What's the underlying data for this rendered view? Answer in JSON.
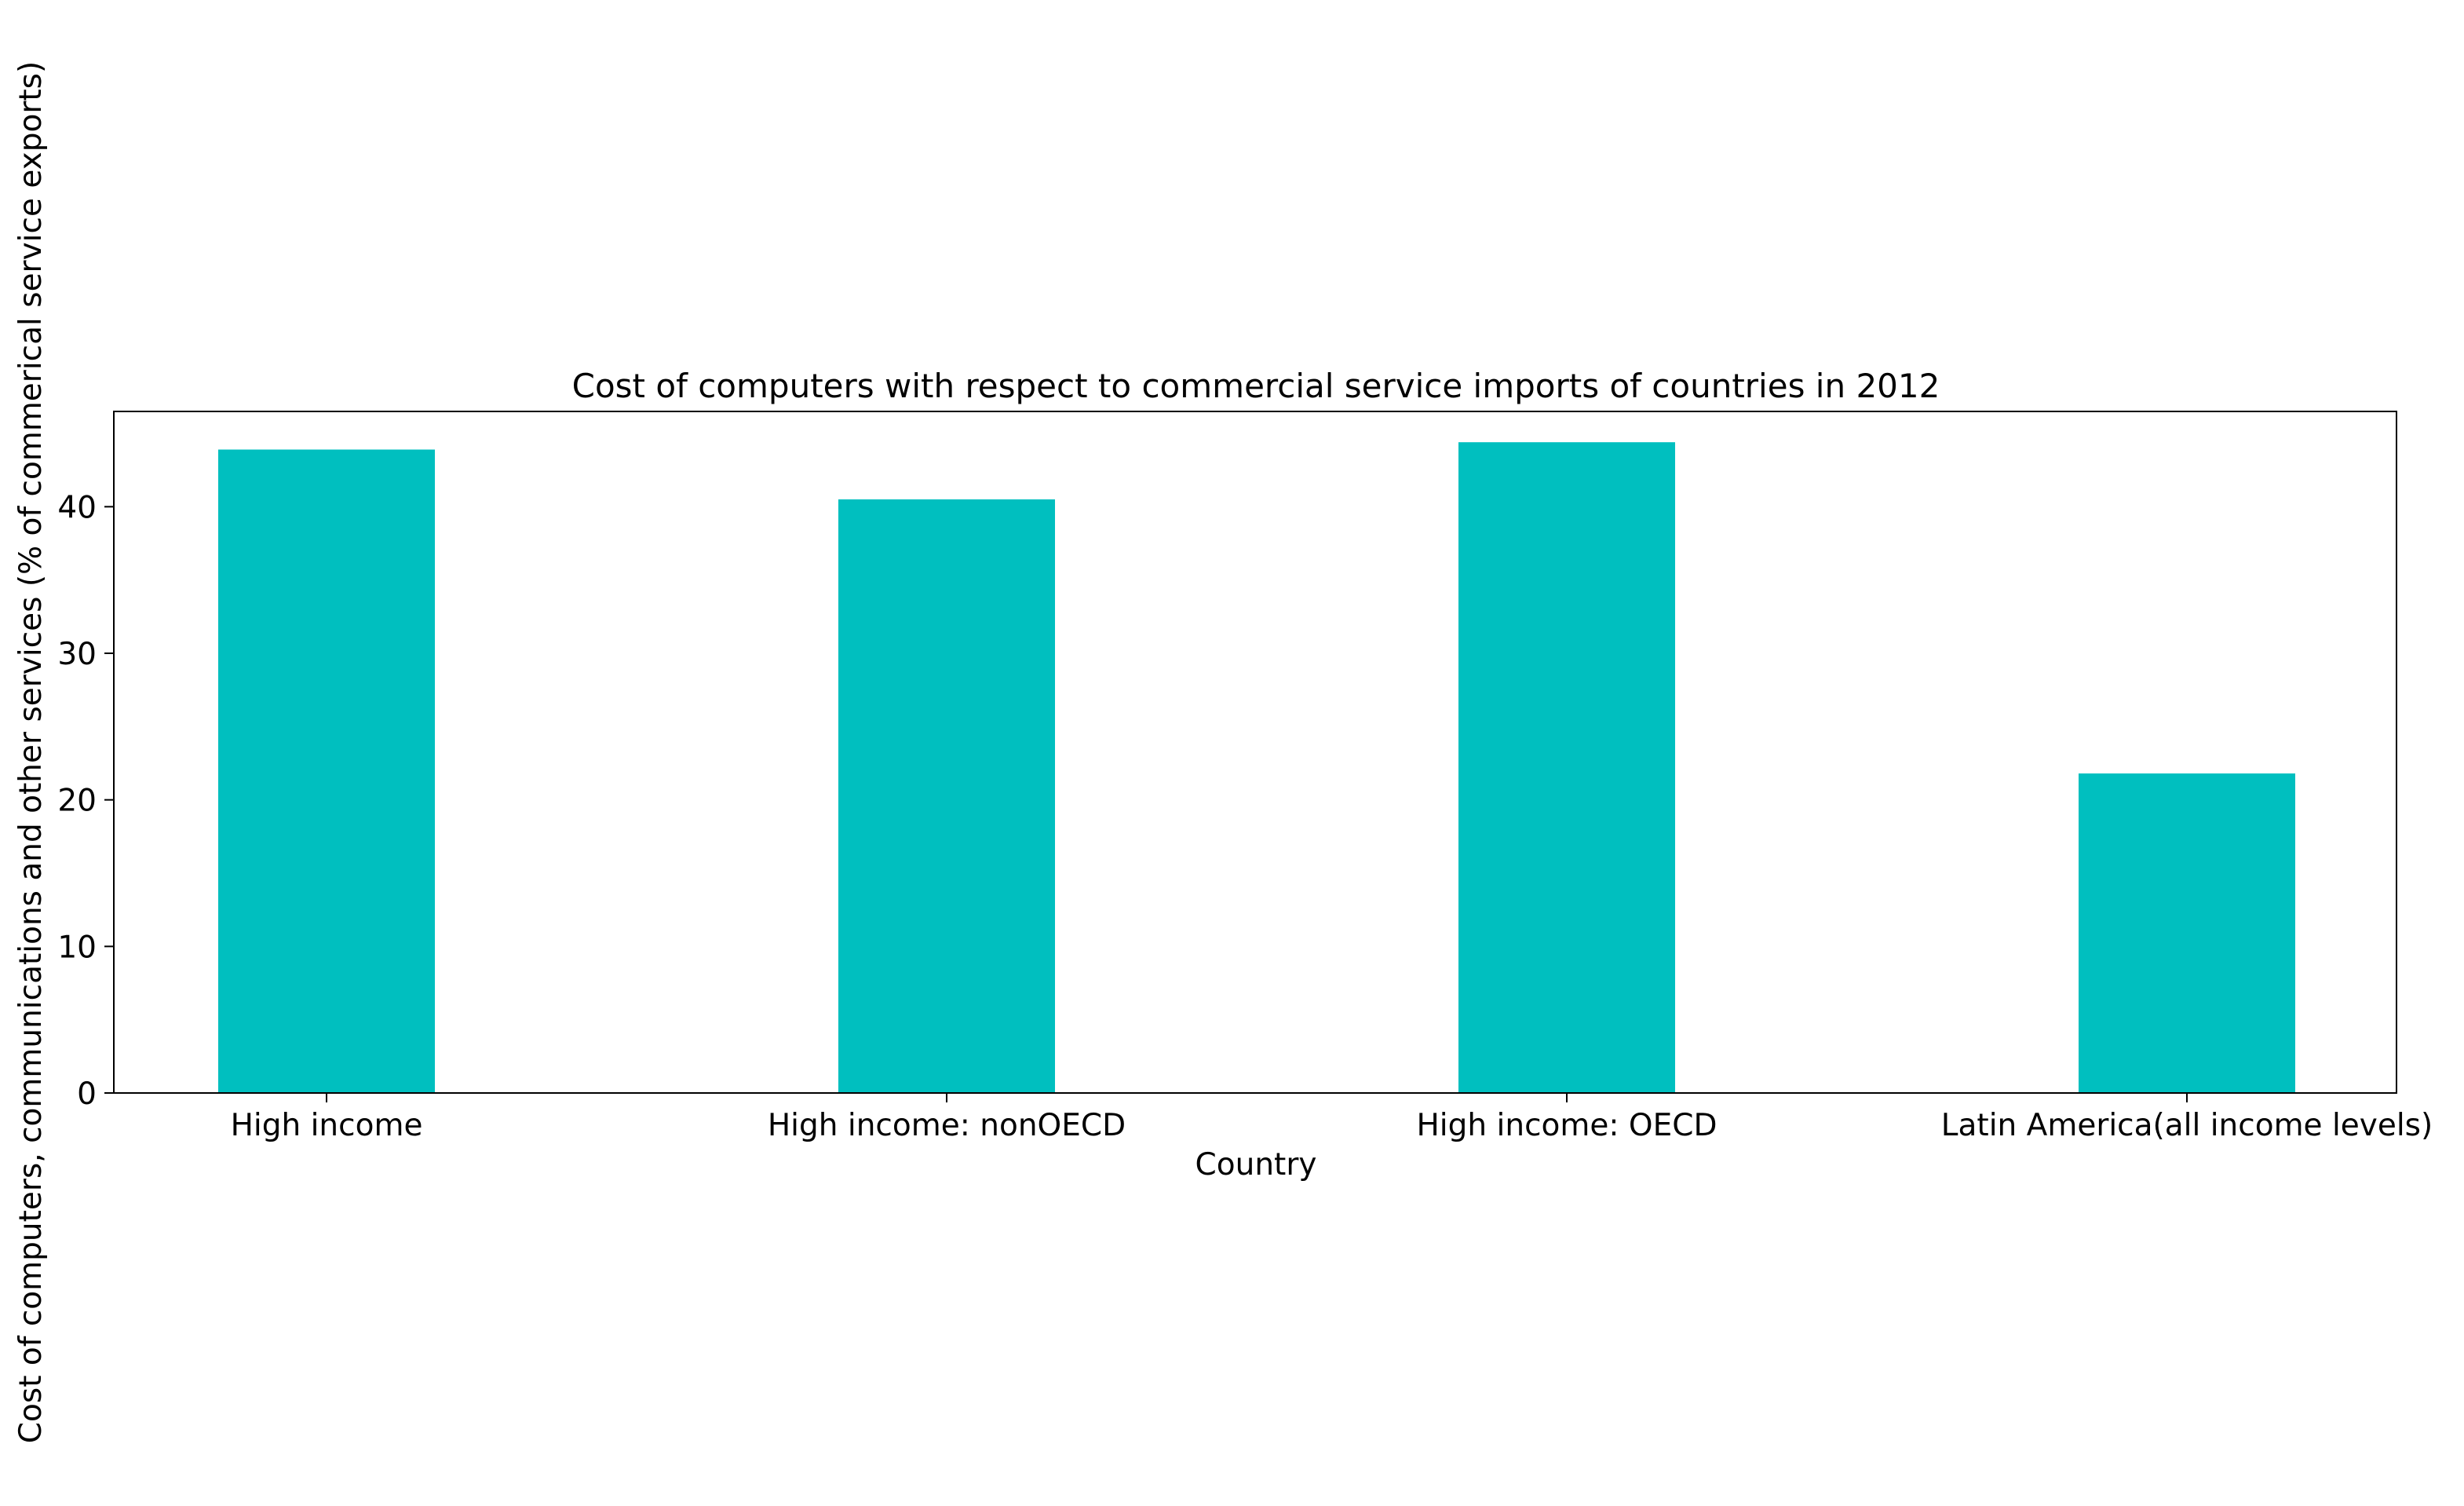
{
  "chart_data": {
    "type": "bar",
    "title": "Cost of computers with respect to commercial service imports of countries in 2012",
    "xlabel": "Country",
    "ylabel": "Cost of computers, communications and other services (% of commerical service exports)",
    "categories": [
      "High income",
      "High income: nonOECD",
      "High income: OECD",
      "Latin America(all income levels)"
    ],
    "values": [
      43.9,
      40.5,
      44.4,
      21.8
    ],
    "ylim": [
      0,
      46.5
    ],
    "yticks": [
      0,
      10,
      20,
      30,
      40
    ],
    "grid": false,
    "legend": "none",
    "bar_color": "#00bfbf"
  }
}
